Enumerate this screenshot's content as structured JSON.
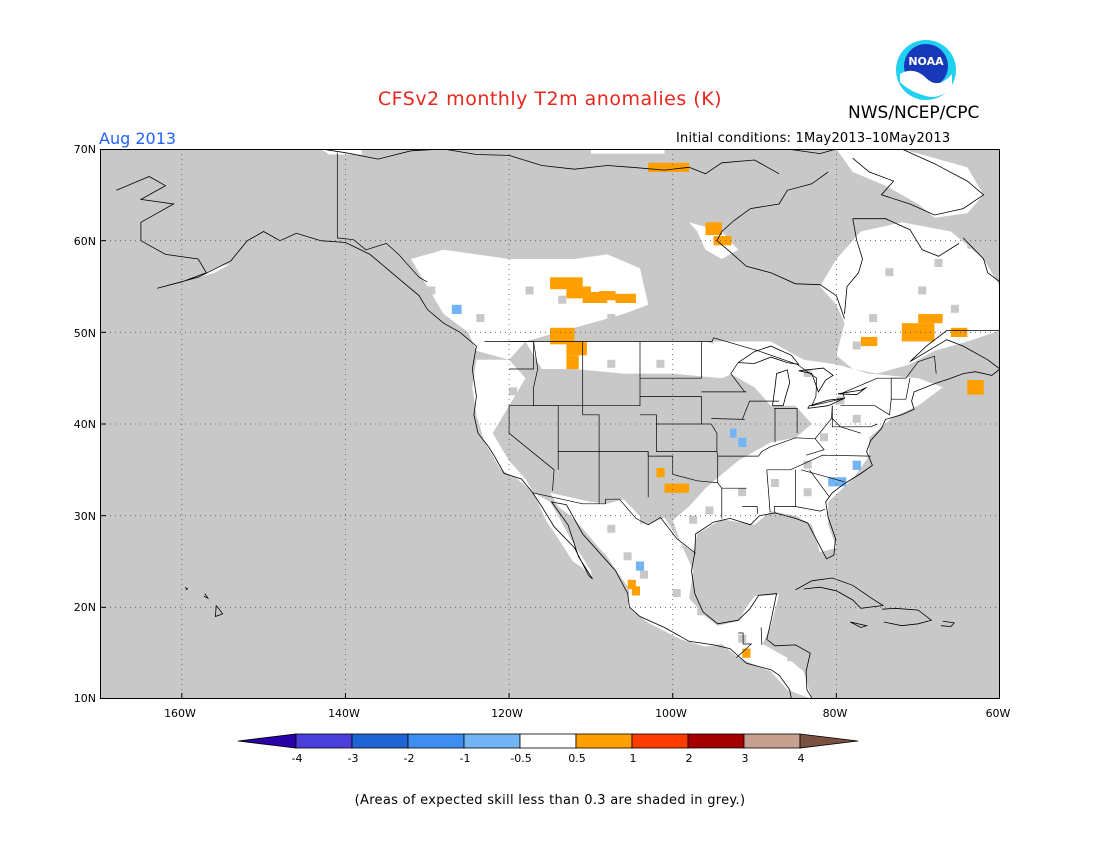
{
  "header": {
    "title": "CFSv2 monthly T2m anomalies (K)",
    "agency": "NWS/NCEP/CPC",
    "logo_text": "NOAA",
    "valid_month": "Aug 2013",
    "initial_conditions": "Initial conditions: 1May2013–10May2013"
  },
  "map": {
    "projection": "lat-lon",
    "lon_range": [
      -170,
      -60
    ],
    "lat_range": [
      10,
      70
    ],
    "lat_ticks": [
      "70N",
      "60N",
      "50N",
      "40N",
      "30N",
      "20N",
      "10N"
    ],
    "lon_ticks": [
      "160W",
      "140W",
      "120W",
      "100W",
      "80W",
      "60W"
    ],
    "gridlines": "dotted",
    "colors": {
      "low_skill_grey": "#c8c8c8",
      "neutral": "#ffffff",
      "coast": "#000000"
    }
  },
  "colorbar": {
    "labels": [
      "-4",
      "-3",
      "-2",
      "-1",
      "-0.5",
      "0.5",
      "1",
      "2",
      "3",
      "4"
    ],
    "colors": [
      "#2a00a8",
      "#4b3fdc",
      "#1f63d4",
      "#3d8ef0",
      "#72b4f4",
      "#ffffff",
      "#ff9f00",
      "#ff3c00",
      "#a50000",
      "#c7a08f",
      "#7a5040"
    ]
  },
  "footer": {
    "note": "(Areas of expected skill less than 0.3 are shaded in grey.)"
  }
}
